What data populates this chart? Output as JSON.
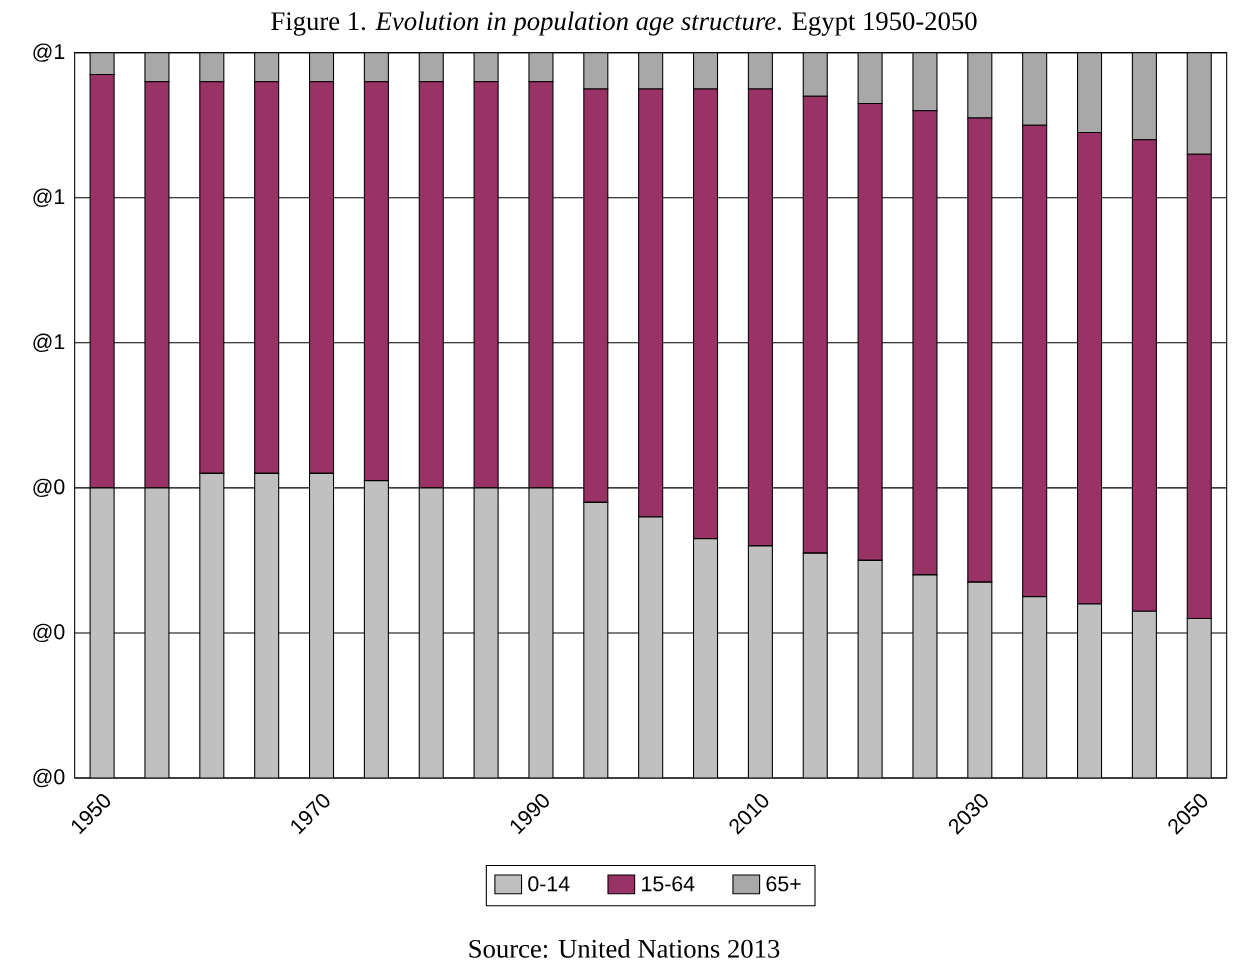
{
  "chart_data": {
    "type": "bar",
    "stacked": true,
    "title": "Figure 1. *Evolution in population age structure*. Egypt 1950-2050",
    "categories": [
      "1950",
      null,
      null,
      null,
      "1970",
      null,
      null,
      null,
      "1990",
      null,
      null,
      null,
      "2010",
      null,
      null,
      null,
      "2030",
      null,
      null,
      null,
      "2050"
    ],
    "series": [
      {
        "name": "0-14",
        "color": "#c0c0c0",
        "values": [
          0.4,
          0.4,
          0.42,
          0.42,
          0.42,
          0.41,
          0.4,
          0.4,
          0.4,
          0.38,
          0.36,
          0.33,
          0.32,
          0.31,
          0.3,
          0.28,
          0.27,
          0.25,
          0.24,
          0.23,
          0.22
        ]
      },
      {
        "name": "15-64",
        "color": "#993366",
        "values": [
          0.57,
          0.56,
          0.54,
          0.54,
          0.54,
          0.55,
          0.56,
          0.56,
          0.56,
          0.57,
          0.59,
          0.62,
          0.63,
          0.63,
          0.63,
          0.64,
          0.64,
          0.65,
          0.65,
          0.65,
          0.64
        ]
      },
      {
        "name": "65+",
        "color": "#a8a8a8",
        "values": [
          0.03,
          0.04,
          0.04,
          0.04,
          0.04,
          0.04,
          0.04,
          0.04,
          0.04,
          0.05,
          0.05,
          0.05,
          0.05,
          0.06,
          0.07,
          0.08,
          0.09,
          0.1,
          0.11,
          0.12,
          0.14
        ]
      }
    ],
    "ylim": [
      0,
      1
    ],
    "yticks": [
      {
        "value": 0,
        "label": "@0"
      },
      {
        "value": 0.2,
        "label": "@0"
      },
      {
        "value": 0.4,
        "label": "@0"
      },
      {
        "value": 0.6,
        "label": "@1"
      },
      {
        "value": 0.8,
        "label": "@1"
      },
      {
        "value": 1,
        "label": "@1"
      }
    ],
    "grid": "y",
    "legend": "bottom",
    "annotations": [
      "Source: United Nations 2013"
    ]
  }
}
